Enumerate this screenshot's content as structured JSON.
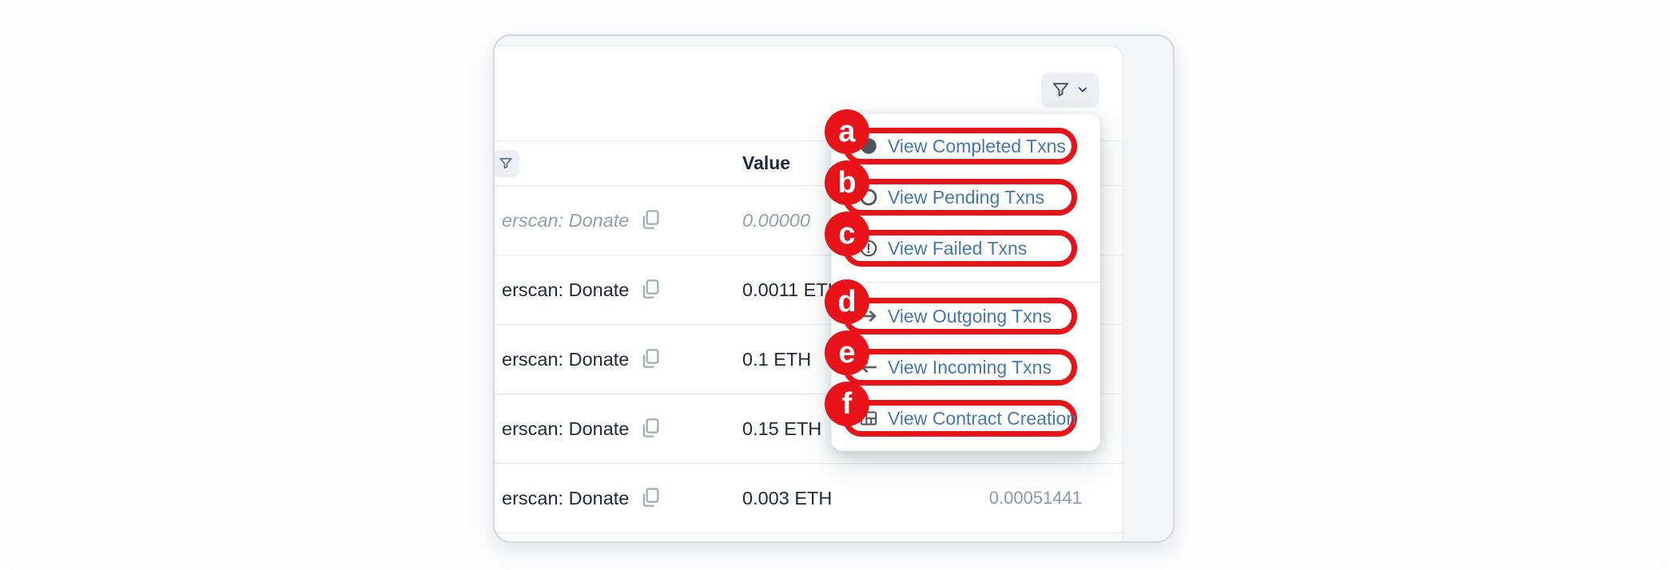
{
  "colors": {
    "annotation_red": "#e81219",
    "menu_link_blue": "#4577b1",
    "card_background": "#ffffff",
    "page_background": "#f5f6f8"
  },
  "toolbar": {
    "filter_button_icons": [
      "funnel-icon",
      "chevron-down-icon"
    ]
  },
  "table": {
    "header_value": "Value",
    "rows": [
      {
        "name": "erscan: Donate",
        "value": "0.00000",
        "fee": "",
        "status": "pending"
      },
      {
        "name": "erscan: Donate",
        "value": "0.0011 ETH",
        "fee": "",
        "status": "normal"
      },
      {
        "name": "erscan: Donate",
        "value": "0.1 ETH",
        "fee": "",
        "status": "normal"
      },
      {
        "name": "erscan: Donate",
        "value": "0.15 ETH",
        "fee": "",
        "status": "normal"
      },
      {
        "name": "erscan: Donate",
        "value": "0.003 ETH",
        "fee": "0.00051441",
        "status": "normal"
      }
    ]
  },
  "filter_menu": {
    "divider_after_index": 2,
    "items": [
      {
        "badge": "a",
        "icon": "filled-circle-icon",
        "label": "View Completed Txns"
      },
      {
        "badge": "b",
        "icon": "outline-circle-icon",
        "label": "View Pending Txns"
      },
      {
        "badge": "c",
        "icon": "exclamation-circle-icon",
        "label": "View Failed Txns"
      },
      {
        "badge": "d",
        "icon": "arrow-right-icon",
        "label": "View Outgoing Txns"
      },
      {
        "badge": "e",
        "icon": "arrow-left-icon",
        "label": "View Incoming Txns"
      },
      {
        "badge": "f",
        "icon": "contract-icon",
        "label": "View Contract Creation"
      }
    ]
  }
}
